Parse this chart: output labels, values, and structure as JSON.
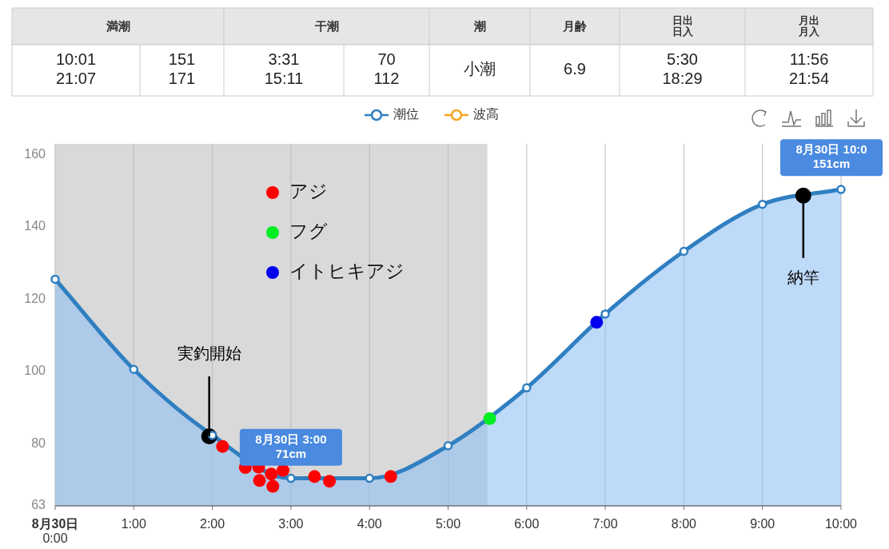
{
  "chart_data": [
    {
      "type": "other",
      "categories": [
        "満潮",
        "干潮",
        "潮",
        "月齢",
        "日出日入",
        "月出月入"
      ],
      "annotations": [
        "10:01\n21:07",
        "151\n171",
        "3:31\n15:11",
        "70\n112",
        "小潮",
        "6.9",
        "5:30\n18:29",
        "11:56\n21:54"
      ]
    },
    {
      "type": "area",
      "x": [
        0,
        1,
        2,
        3,
        4,
        5,
        6,
        7,
        8,
        9,
        10
      ],
      "xlim": [
        0,
        10
      ],
      "ylim": [
        63,
        163
      ],
      "xticks": [
        {
          "value": 0,
          "label": "**8月30日**\n0:00"
        },
        {
          "value": 1,
          "label": "1:00"
        },
        {
          "value": 2,
          "label": "2:00"
        },
        {
          "value": 3,
          "label": "3:00"
        },
        {
          "value": 4,
          "label": "4:00"
        },
        {
          "value": 5,
          "label": "5:00"
        },
        {
          "value": 6,
          "label": "6:00"
        },
        {
          "value": 7,
          "label": "7:00"
        },
        {
          "value": 8,
          "label": "8:00"
        },
        {
          "value": 9,
          "label": "9:00"
        },
        {
          "value": 10,
          "label": "10:00"
        }
      ],
      "yticks": [
        63,
        80,
        100,
        120,
        140,
        160
      ],
      "grid": "x",
      "legend": "top",
      "marker": "circle",
      "bands": [
        {
          "axis": "x",
          "from": 0,
          "to": 5.5,
          "color": "#d9d9d9"
        }
      ],
      "series": [
        {
          "name": "潮位",
          "type": "area",
          "color": "#2f7fc1",
          "values": [
            125.6,
            100.7,
            82.5,
            70.6,
            70.6,
            79.6,
            95.6,
            116,
            133.3,
            146.3,
            150.4
          ]
        },
        {
          "name": "波高",
          "type": "line",
          "color": "#f5a623",
          "values": [
            null,
            null,
            null,
            null,
            null,
            null,
            null,
            null,
            null,
            null,
            null
          ]
        },
        {
          "name": "アジ",
          "type": "scatter",
          "color": "#ff0000",
          "x": [
            2.13,
            2.42,
            2.59,
            2.6,
            2.75,
            2.77,
            2.9,
            3.3,
            3.49,
            4.27
          ],
          "values": [
            79.4,
            73.6,
            73.7,
            70,
            71.8,
            68.4,
            72.8,
            71.1,
            69.8,
            71.1
          ]
        },
        {
          "name": "フグ",
          "type": "scatter",
          "color": "#00ee22",
          "x": [
            5.53
          ],
          "values": [
            87.1
          ]
        },
        {
          "name": "イトヒキアジ",
          "type": "scatter",
          "color": "#0000ee",
          "x": [
            6.89
          ],
          "values": [
            113.7
          ]
        },
        {
          "type": "scatter",
          "color": "#000000",
          "x": [
            1.96,
            9.52
          ],
          "values": [
            82.2,
            148.7
          ]
        }
      ],
      "annotations": [
        {
          "text": "実釣開始",
          "x": 1.96,
          "y": 82.2
        },
        {
          "text": "納竿",
          "x": 9.52,
          "y": 148.7
        },
        {
          "text": "8月30日 3:00\n71cm",
          "x": 3,
          "y": 71
        },
        {
          "text": "8月30日 10:0\n151cm",
          "x": 10,
          "y": 151
        }
      ]
    }
  ]
}
